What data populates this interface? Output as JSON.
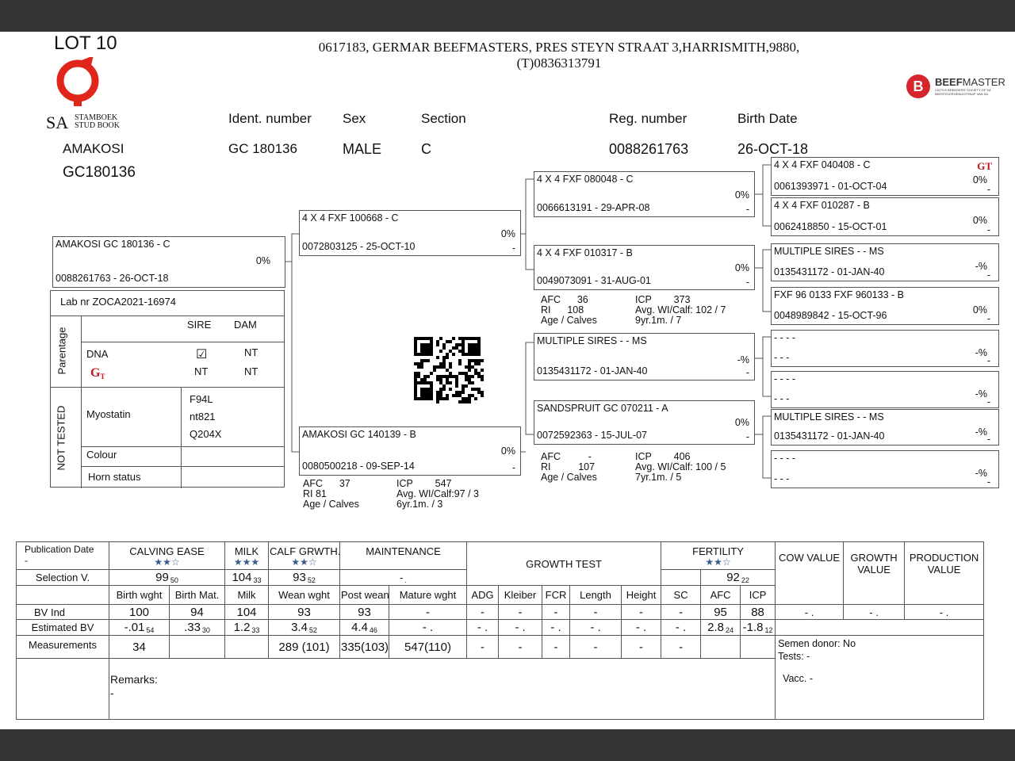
{
  "header": {
    "lot": "LOT 10",
    "owner_line1": "0617183,  GERMAR BEEFMASTERS, PRES STEYN STRAAT 3,HARRISMITH,9880,",
    "owner_line2": "(T)0836313791",
    "studbook_logo": {
      "sa": "SA",
      "line1": "STAMBOEK",
      "line2": "STUD BOOK",
      "color": "#e0251b"
    },
    "beefmaster_logo": {
      "letter": "B",
      "name_bold": "BEEF",
      "name_light": "MASTER",
      "line1": "CATTLE BREEDERS' SOCIETY OF SA",
      "line2": "BEESTELERGENOOTSKAP VAN SA",
      "color": "#d6252c"
    }
  },
  "animal": {
    "name": "AMAKOSI",
    "id": "GC180136",
    "labels": {
      "ident": "Ident. number",
      "sex": "Sex",
      "section": "Section",
      "reg": "Reg. number",
      "birth": "Birth Date"
    },
    "values": {
      "ident": "GC  180136",
      "sex": "MALE",
      "section": "C",
      "reg": "0088261763",
      "birth": "26-OCT-18"
    }
  },
  "pedigree": {
    "subject": {
      "name": "AMAKOSI GC  180136 - C",
      "reg": "0088261763 -  26-OCT-18",
      "pct": "0%"
    },
    "sire": {
      "name": "4 X 4 FXF 100668 - C",
      "reg": "0072803125 - 25-OCT-10",
      "pct": "0%",
      "d": "-"
    },
    "dam": {
      "name": "AMAKOSI GC  140139 - B",
      "reg": "0080500218 - 09-SEP-14",
      "pct": "0%",
      "d": "-",
      "info": {
        "afc": "AFC",
        "afc_v": "37",
        "icp": "ICP",
        "icp_v": "547",
        "ri": "RI  81",
        "avg": "Avg. WI/Calf:97 / 3",
        "age": "Age / Calves",
        "age_v": "6yr.1m. / 3"
      }
    },
    "ss": {
      "name": "4 X 4 FXF 080048 - C",
      "reg": "0066613191 - 29-APR-08",
      "pct": "0%",
      "d": "-"
    },
    "sd": {
      "name": "4 X 4 FXF 010317 - B",
      "reg": "0049073091 - 31-AUG-01",
      "pct": "0%",
      "d": "-",
      "info": {
        "afc": "AFC",
        "afc_v": "36",
        "icp": "ICP",
        "icp_v": "373",
        "ri": "RI",
        "ri_v": "108",
        "avg": "Avg. WI/Calf:  102 / 7",
        "age": "Age / Calves",
        "age_v": "9yr.1m. / 7"
      }
    },
    "ds": {
      "name": "MULTIPLE SIRES - - MS",
      "reg": "0135431172 - 01-JAN-40",
      "pct": "-%",
      "d": "-"
    },
    "dd": {
      "name": "SANDSPRUIT GC  070211 - A",
      "reg": "0072592363 - 15-JUL-07",
      "pct": "0%",
      "d": "-",
      "info": {
        "afc": "AFC",
        "afc_v": "-",
        "icp": "ICP",
        "icp_v": "406",
        "ri": "RI",
        "ri_v": "107",
        "avg": "Avg. WI/Calf:  100 / 5",
        "age": "Age / Calves",
        "age_v": "7yr.1m. / 5"
      }
    },
    "gen3": [
      {
        "name": "4 X 4 FXF 040408 - C",
        "reg": "0061393971 - 01-OCT-04",
        "pct": "0%",
        "d": "-",
        "gt": true
      },
      {
        "name": "4 X 4 FXF 010287 - B",
        "reg": "0062418850 - 15-OCT-01",
        "pct": "0%",
        "d": "-"
      },
      {
        "name": "MULTIPLE SIRES - - MS",
        "reg": "0135431172 - 01-JAN-40",
        "pct": "-%",
        "d": "-"
      },
      {
        "name": "FXF 96 0133 FXF 960133 - B",
        "reg": "0048989842 - 15-OCT-96",
        "pct": "0%",
        "d": "-"
      },
      {
        "name": "- - - -",
        "reg": "- - -",
        "pct": "-%",
        "d": "-"
      },
      {
        "name": "- - - -",
        "reg": "- - -",
        "pct": "-%",
        "d": "-"
      },
      {
        "name": "MULTIPLE SIRES - - MS",
        "reg": "0135431172 - 01-JAN-40",
        "pct": "-%",
        "d": "-"
      },
      {
        "name": "- - - -",
        "reg": "- - -",
        "pct": "-%",
        "d": "-"
      }
    ]
  },
  "lab": {
    "lab_nr": "Lab nr  ZOCA2021-16974",
    "parentage": "Parentage",
    "not_tested": "NOT TESTED",
    "sire": "SIRE",
    "dam": "DAM",
    "dna": "DNA",
    "dna_dam": "NT",
    "gt_sire": "NT",
    "gt_dam": "NT",
    "myostatin": "Myostatin",
    "myo": [
      "F94L",
      "nt821",
      "Q204X"
    ],
    "colour": "Colour",
    "horn": "Horn status"
  },
  "stars": {
    "calving": "★★☆",
    "milk": "★★★",
    "calf": "★★☆",
    "fertility": "★★☆",
    "color": "#3a5a8a"
  },
  "table": {
    "pub_date": "Publication Date",
    "pub_date_v": "-",
    "calving": "CALVING EASE",
    "milk": "MILK",
    "calf": "CALF GRWTH.",
    "maint": "MAINTENANCE",
    "growth_test": "GROWTH TEST",
    "fertility": "FERTILITY",
    "cow": "COW VALUE",
    "growth": "GROWTH VALUE",
    "production": "PRODUCTION VALUE",
    "sel_label": "Selection V.",
    "sel": {
      "calving": "99",
      "calving_s": "50",
      "milk": "104",
      "milk_s": "33",
      "calf": "93",
      "calf_s": "52",
      "maint": "-",
      "maint_s": ".",
      "fert": "92",
      "fert_s": "22"
    },
    "cols": [
      "Birth wght",
      "Birth Mat.",
      "Milk",
      "Wean wght",
      "Post wean",
      "Mature wght",
      "ADG",
      "Kleiber",
      "FCR",
      "Length",
      "Height",
      "SC",
      "AFC",
      "ICP"
    ],
    "bv_label": "BV Ind",
    "bv": [
      "100",
      "94",
      "104",
      "93",
      "93",
      "-",
      "-",
      "-",
      "-",
      "-",
      "-",
      "-",
      "95",
      "88"
    ],
    "bv_values": [
      "- .",
      "- .",
      "- ."
    ],
    "est_label": "Estimated BV",
    "est": [
      [
        "-.01",
        "54"
      ],
      [
        ".33",
        "30"
      ],
      [
        "1.2",
        "33"
      ],
      [
        "3.4",
        "52"
      ],
      [
        "4.4",
        "46"
      ],
      [
        "- .",
        ""
      ],
      [
        "- .",
        ""
      ],
      [
        "- .",
        ""
      ],
      [
        "- .",
        ""
      ],
      [
        "- .",
        ""
      ],
      [
        "- .",
        ""
      ],
      [
        "- .",
        ""
      ],
      [
        "2.8",
        "24"
      ],
      [
        "-1.8",
        "12"
      ]
    ],
    "meas_label": "Measurements",
    "meas": [
      "34",
      "",
      "",
      "289 (101)",
      "335(103)",
      "547(110)",
      "-",
      "-",
      "-",
      "-",
      "-",
      "-",
      "",
      ""
    ],
    "semen": "Semen donor: No",
    "tests": "Tests: -",
    "vacc": "Vacc. -",
    "remarks": "Remarks:",
    "remarks_v": "-"
  }
}
